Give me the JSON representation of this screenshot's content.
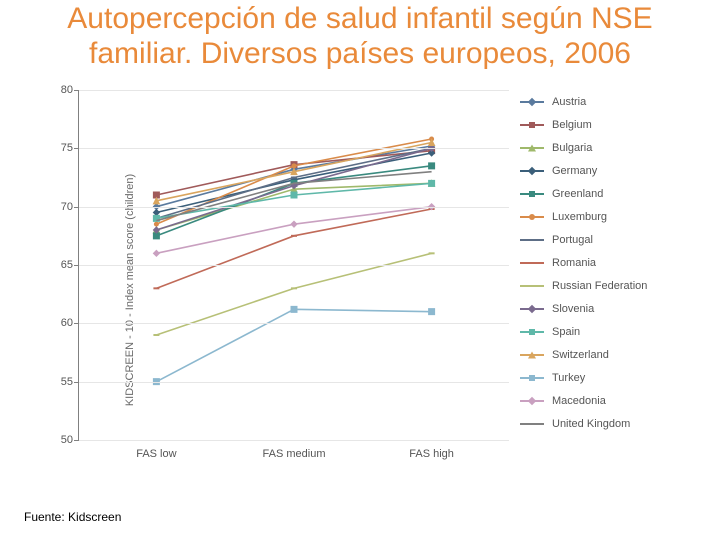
{
  "title_color": "#e98a3a",
  "title_line1": "Autopercepción de salud infantil según NSE",
  "title_line2": "familiar. Diversos países europeos, 2006",
  "source": "Fuente: Kidscreen",
  "chart": {
    "type": "line",
    "y_axis_title": "KIDSCREEN - 10 - Index mean score (children)",
    "ylim": [
      50,
      80
    ],
    "ytick_step": 5,
    "yticks": [
      50,
      55,
      60,
      65,
      70,
      75,
      80
    ],
    "grid_color": "#e6e6e6",
    "axis_color": "#808080",
    "label_fontsize": 11,
    "label_color": "#555555",
    "categories": [
      "FAS low",
      "FAS medium",
      "FAS high"
    ],
    "x_positions": [
      0.18,
      0.5,
      0.82
    ],
    "marker_size": 5,
    "line_width": 1.6,
    "series": [
      {
        "name": "Austria",
        "color": "#5a7a9e",
        "marker": "diamond",
        "values": [
          70.0,
          73.2,
          75.2
        ]
      },
      {
        "name": "Belgium",
        "color": "#a05a5a",
        "marker": "square",
        "values": [
          71.0,
          73.6,
          74.8
        ]
      },
      {
        "name": "Bulgaria",
        "color": "#9fb96b",
        "marker": "triangle",
        "values": [
          68.0,
          71.5,
          72.0
        ]
      },
      {
        "name": "Germany",
        "color": "#3b5f7a",
        "marker": "diamond",
        "values": [
          69.5,
          72.3,
          74.6
        ]
      },
      {
        "name": "Greenland",
        "color": "#3a8a7f",
        "marker": "square",
        "values": [
          67.5,
          72.0,
          73.5
        ]
      },
      {
        "name": "Luxemburg",
        "color": "#d98b4a",
        "marker": "circle",
        "values": [
          68.5,
          73.5,
          75.8
        ]
      },
      {
        "name": "Portugal",
        "color": "#5d6e86",
        "marker": "dash",
        "values": [
          69.0,
          72.5,
          75.0
        ]
      },
      {
        "name": "Romania",
        "color": "#c06a58",
        "marker": "dash",
        "values": [
          63.0,
          67.5,
          69.8
        ]
      },
      {
        "name": "Russian Federation",
        "color": "#b7c077",
        "marker": "dash",
        "values": [
          59.0,
          63.0,
          66.0
        ]
      },
      {
        "name": "Slovenia",
        "color": "#7a6a8e",
        "marker": "diamond",
        "values": [
          68.0,
          71.8,
          75.0
        ]
      },
      {
        "name": "Spain",
        "color": "#5fb8a9",
        "marker": "square",
        "values": [
          69.0,
          71.0,
          72.0
        ]
      },
      {
        "name": "Switzerland",
        "color": "#d9a55e",
        "marker": "triangle",
        "values": [
          70.5,
          73.0,
          75.5
        ]
      },
      {
        "name": "Turkey",
        "color": "#8cb8cf",
        "marker": "square",
        "values": [
          55.0,
          61.2,
          61.0
        ]
      },
      {
        "name": "Macedonia",
        "color": "#c9a0c0",
        "marker": "diamond",
        "values": [
          66.0,
          68.5,
          70.0
        ]
      },
      {
        "name": "United Kingdom",
        "color": "#808080",
        "marker": "line",
        "values": [
          68.8,
          72.0,
          73.0
        ]
      }
    ]
  }
}
